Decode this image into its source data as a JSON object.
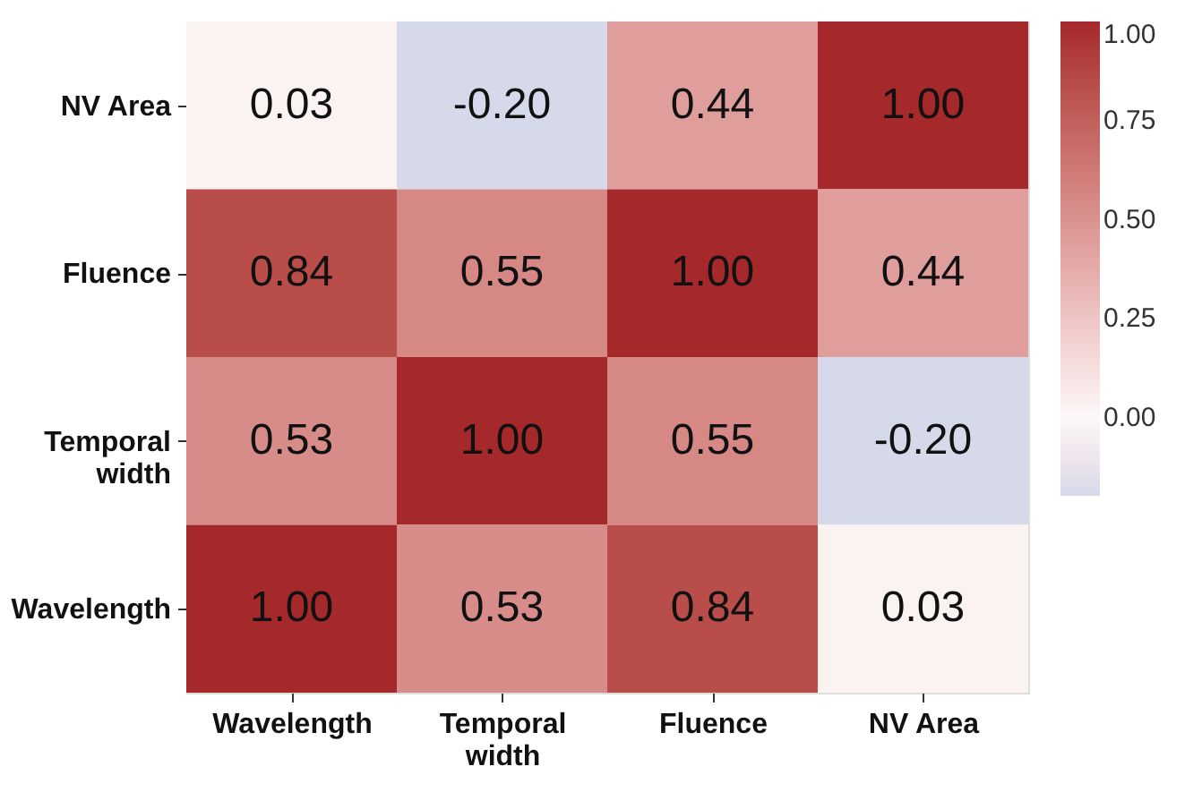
{
  "chart_data": {
    "type": "heatmap",
    "categories": [
      "Wavelength",
      "Temporal width",
      "Fluence",
      "NV Area"
    ],
    "y_categories": [
      "NV Area",
      "Fluence",
      "Temporal width",
      "Wavelength"
    ],
    "cells": [
      [
        0.03,
        -0.2,
        0.44,
        1.0
      ],
      [
        0.84,
        0.55,
        1.0,
        0.44
      ],
      [
        0.53,
        1.0,
        0.55,
        -0.2
      ],
      [
        1.0,
        0.53,
        0.84,
        0.03
      ]
    ],
    "cell_labels": [
      [
        "0.03",
        "-0.20",
        "0.44",
        "1.00"
      ],
      [
        "0.84",
        "0.55",
        "1.00",
        "0.44"
      ],
      [
        "0.53",
        "1.00",
        "0.55",
        "-0.20"
      ],
      [
        "1.00",
        "0.53",
        "0.84",
        "0.03"
      ]
    ],
    "data_labels": true,
    "clim": [
      -0.2,
      1.0
    ],
    "cticks": [
      {
        "value": 0.0,
        "label": "0.00"
      },
      {
        "value": 0.25,
        "label": "0.25"
      },
      {
        "value": 0.5,
        "label": "0.50"
      },
      {
        "value": 0.75,
        "label": "0.75"
      },
      {
        "value": 1.0,
        "label": "1.00"
      }
    ]
  }
}
